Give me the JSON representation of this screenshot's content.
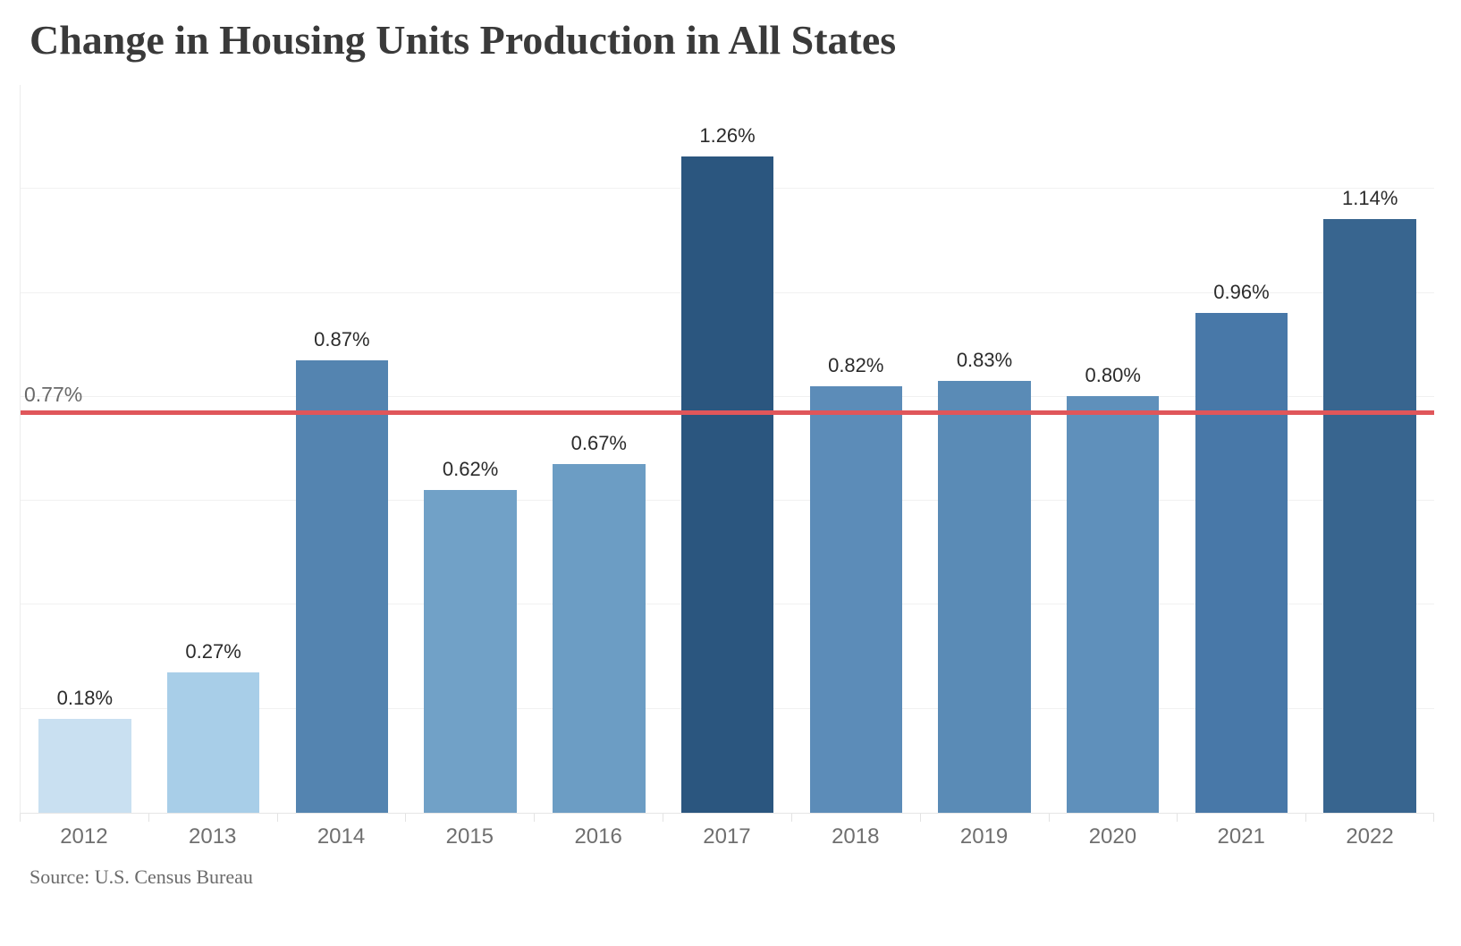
{
  "title": "Change in Housing Units Production in All States",
  "source": "Source: U.S. Census Bureau",
  "chart_data": {
    "type": "bar",
    "title": "Change in Housing Units Production in All States",
    "xlabel": "",
    "ylabel": "",
    "categories": [
      "2012",
      "2013",
      "2014",
      "2015",
      "2016",
      "2017",
      "2018",
      "2019",
      "2020",
      "2021",
      "2022"
    ],
    "values": [
      0.18,
      0.27,
      0.87,
      0.62,
      0.67,
      1.26,
      0.82,
      0.83,
      0.8,
      0.96,
      1.14
    ],
    "value_labels": [
      "0.18%",
      "0.27%",
      "0.87%",
      "0.62%",
      "0.67%",
      "1.26%",
      "0.82%",
      "0.83%",
      "0.80%",
      "0.96%",
      "1.14%"
    ],
    "bar_colors": [
      "#C9E0F1",
      "#A8CEE8",
      "#5484B0",
      "#71A1C7",
      "#6C9DC4",
      "#2B567F",
      "#5C8CB8",
      "#5A8BB6",
      "#5F90BB",
      "#4878A8",
      "#38658F"
    ],
    "ylim": [
      0,
      1.4
    ],
    "gridline_step": 0.2,
    "grid": "horizontal-light-gray-no-tick-labels",
    "legend": "none",
    "reference_line": {
      "value": 0.77,
      "label": "0.77%",
      "color": "#E0565A"
    },
    "annotation_note": "bars colored light-to-dark blue by value; data labels above each bar"
  },
  "colors": {
    "background": "#FFFFFF",
    "title_text": "#3A3A3A",
    "value_label_text": "#2B2B2B",
    "axis_label_text": "#6F6F6F",
    "ref_label_text": "#696969",
    "gridline": "#F1F1F1",
    "axis_line": "#E6E6E6"
  }
}
